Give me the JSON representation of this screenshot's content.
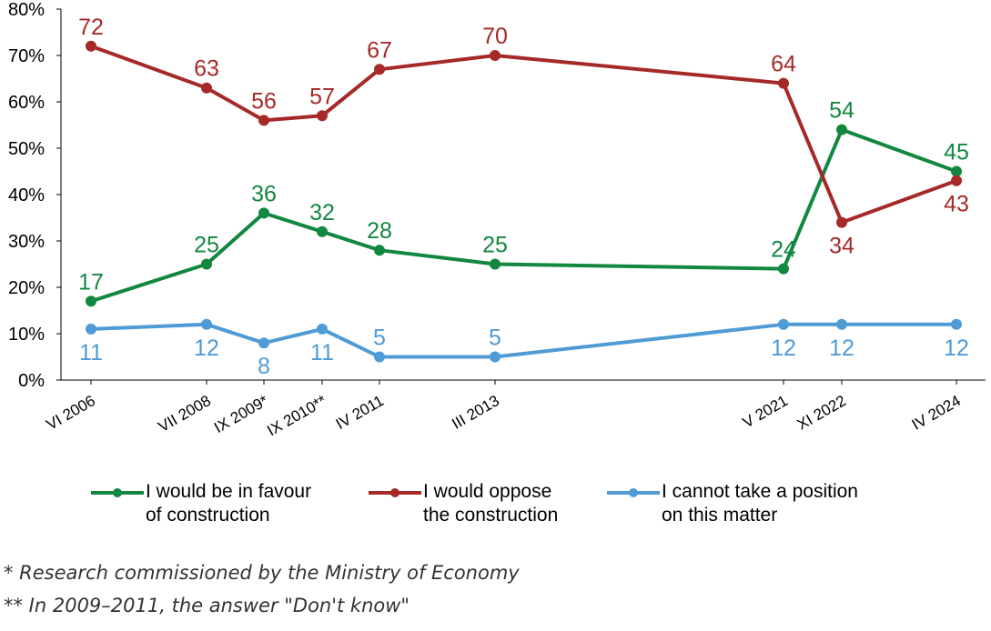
{
  "chart_data": {
    "type": "line",
    "categories": [
      "VI 2006",
      "VII 2008",
      "IX 2009*",
      "IX 2010**",
      "IV 2011",
      "III 2013",
      "V 2021",
      "XI 2022",
      "IV 2024"
    ],
    "y_ticks": [
      "0%",
      "10%",
      "20%",
      "30%",
      "40%",
      "50%",
      "60%",
      "70%",
      "80%"
    ],
    "ylim": [
      0,
      80
    ],
    "series": [
      {
        "name": "I would be in favour\nof construction",
        "color": "#12873f",
        "values": [
          17,
          25,
          36,
          32,
          28,
          25,
          24,
          54,
          45
        ]
      },
      {
        "name": "I would oppose\nthe construction",
        "color": "#a52a27",
        "values": [
          72,
          63,
          56,
          57,
          67,
          70,
          64,
          34,
          43
        ]
      },
      {
        "name": "I cannot take a position\non this matter",
        "color": "#4f9bd5",
        "values": [
          11,
          12,
          8,
          11,
          5,
          5,
          12,
          12,
          12
        ]
      }
    ],
    "legend_position": "bottom"
  },
  "notes": [
    "* Research commissioned by the Ministry of Economy",
    "** In 2009–2011, the answer \"Don't know\""
  ]
}
